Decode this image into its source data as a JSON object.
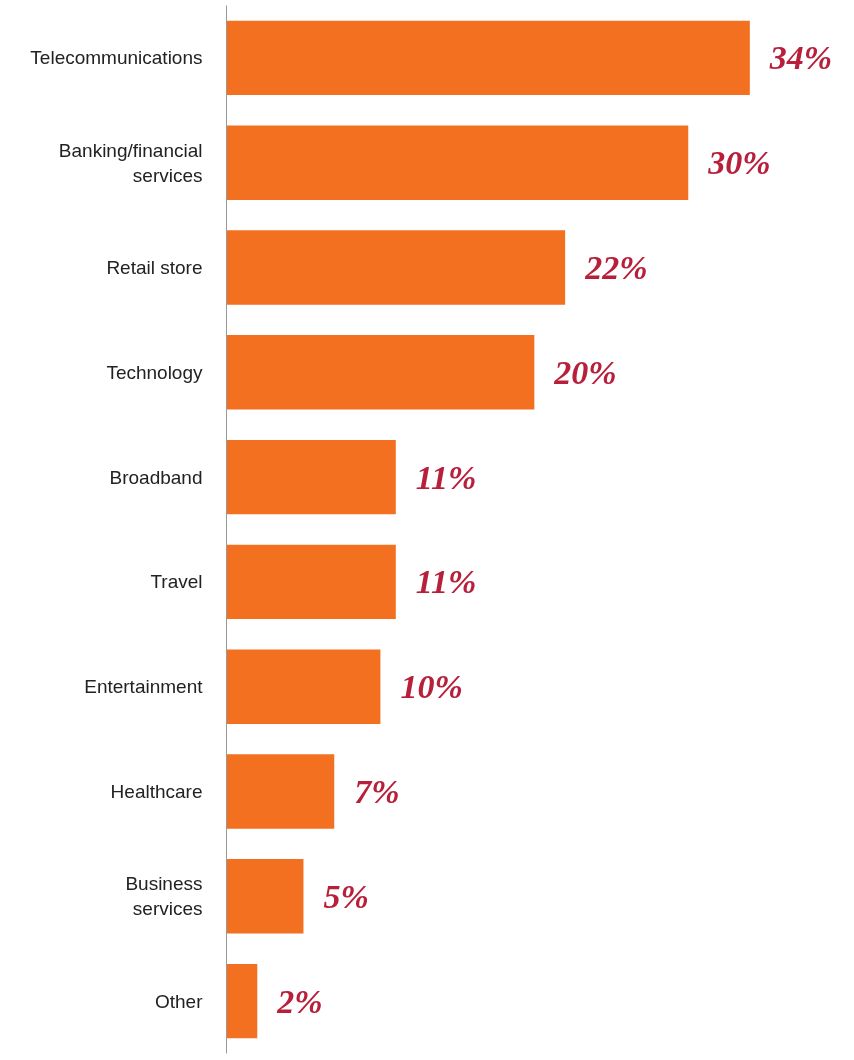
{
  "chart_data": {
    "type": "bar",
    "orientation": "horizontal",
    "categories": [
      "Telecommunications",
      "Banking/financial services",
      "Retail store",
      "Technology",
      "Broadband",
      "Travel",
      "Entertainment",
      "Healthcare",
      "Business services",
      "Other"
    ],
    "values": [
      34,
      30,
      22,
      20,
      11,
      11,
      10,
      7,
      5,
      2
    ],
    "value_labels": [
      "34%",
      "30%",
      "22%",
      "20%",
      "11%",
      "11%",
      "10%",
      "7%",
      "5%",
      "2%"
    ],
    "color": "#f37021",
    "grid": false,
    "tick_labels": "y"
  }
}
